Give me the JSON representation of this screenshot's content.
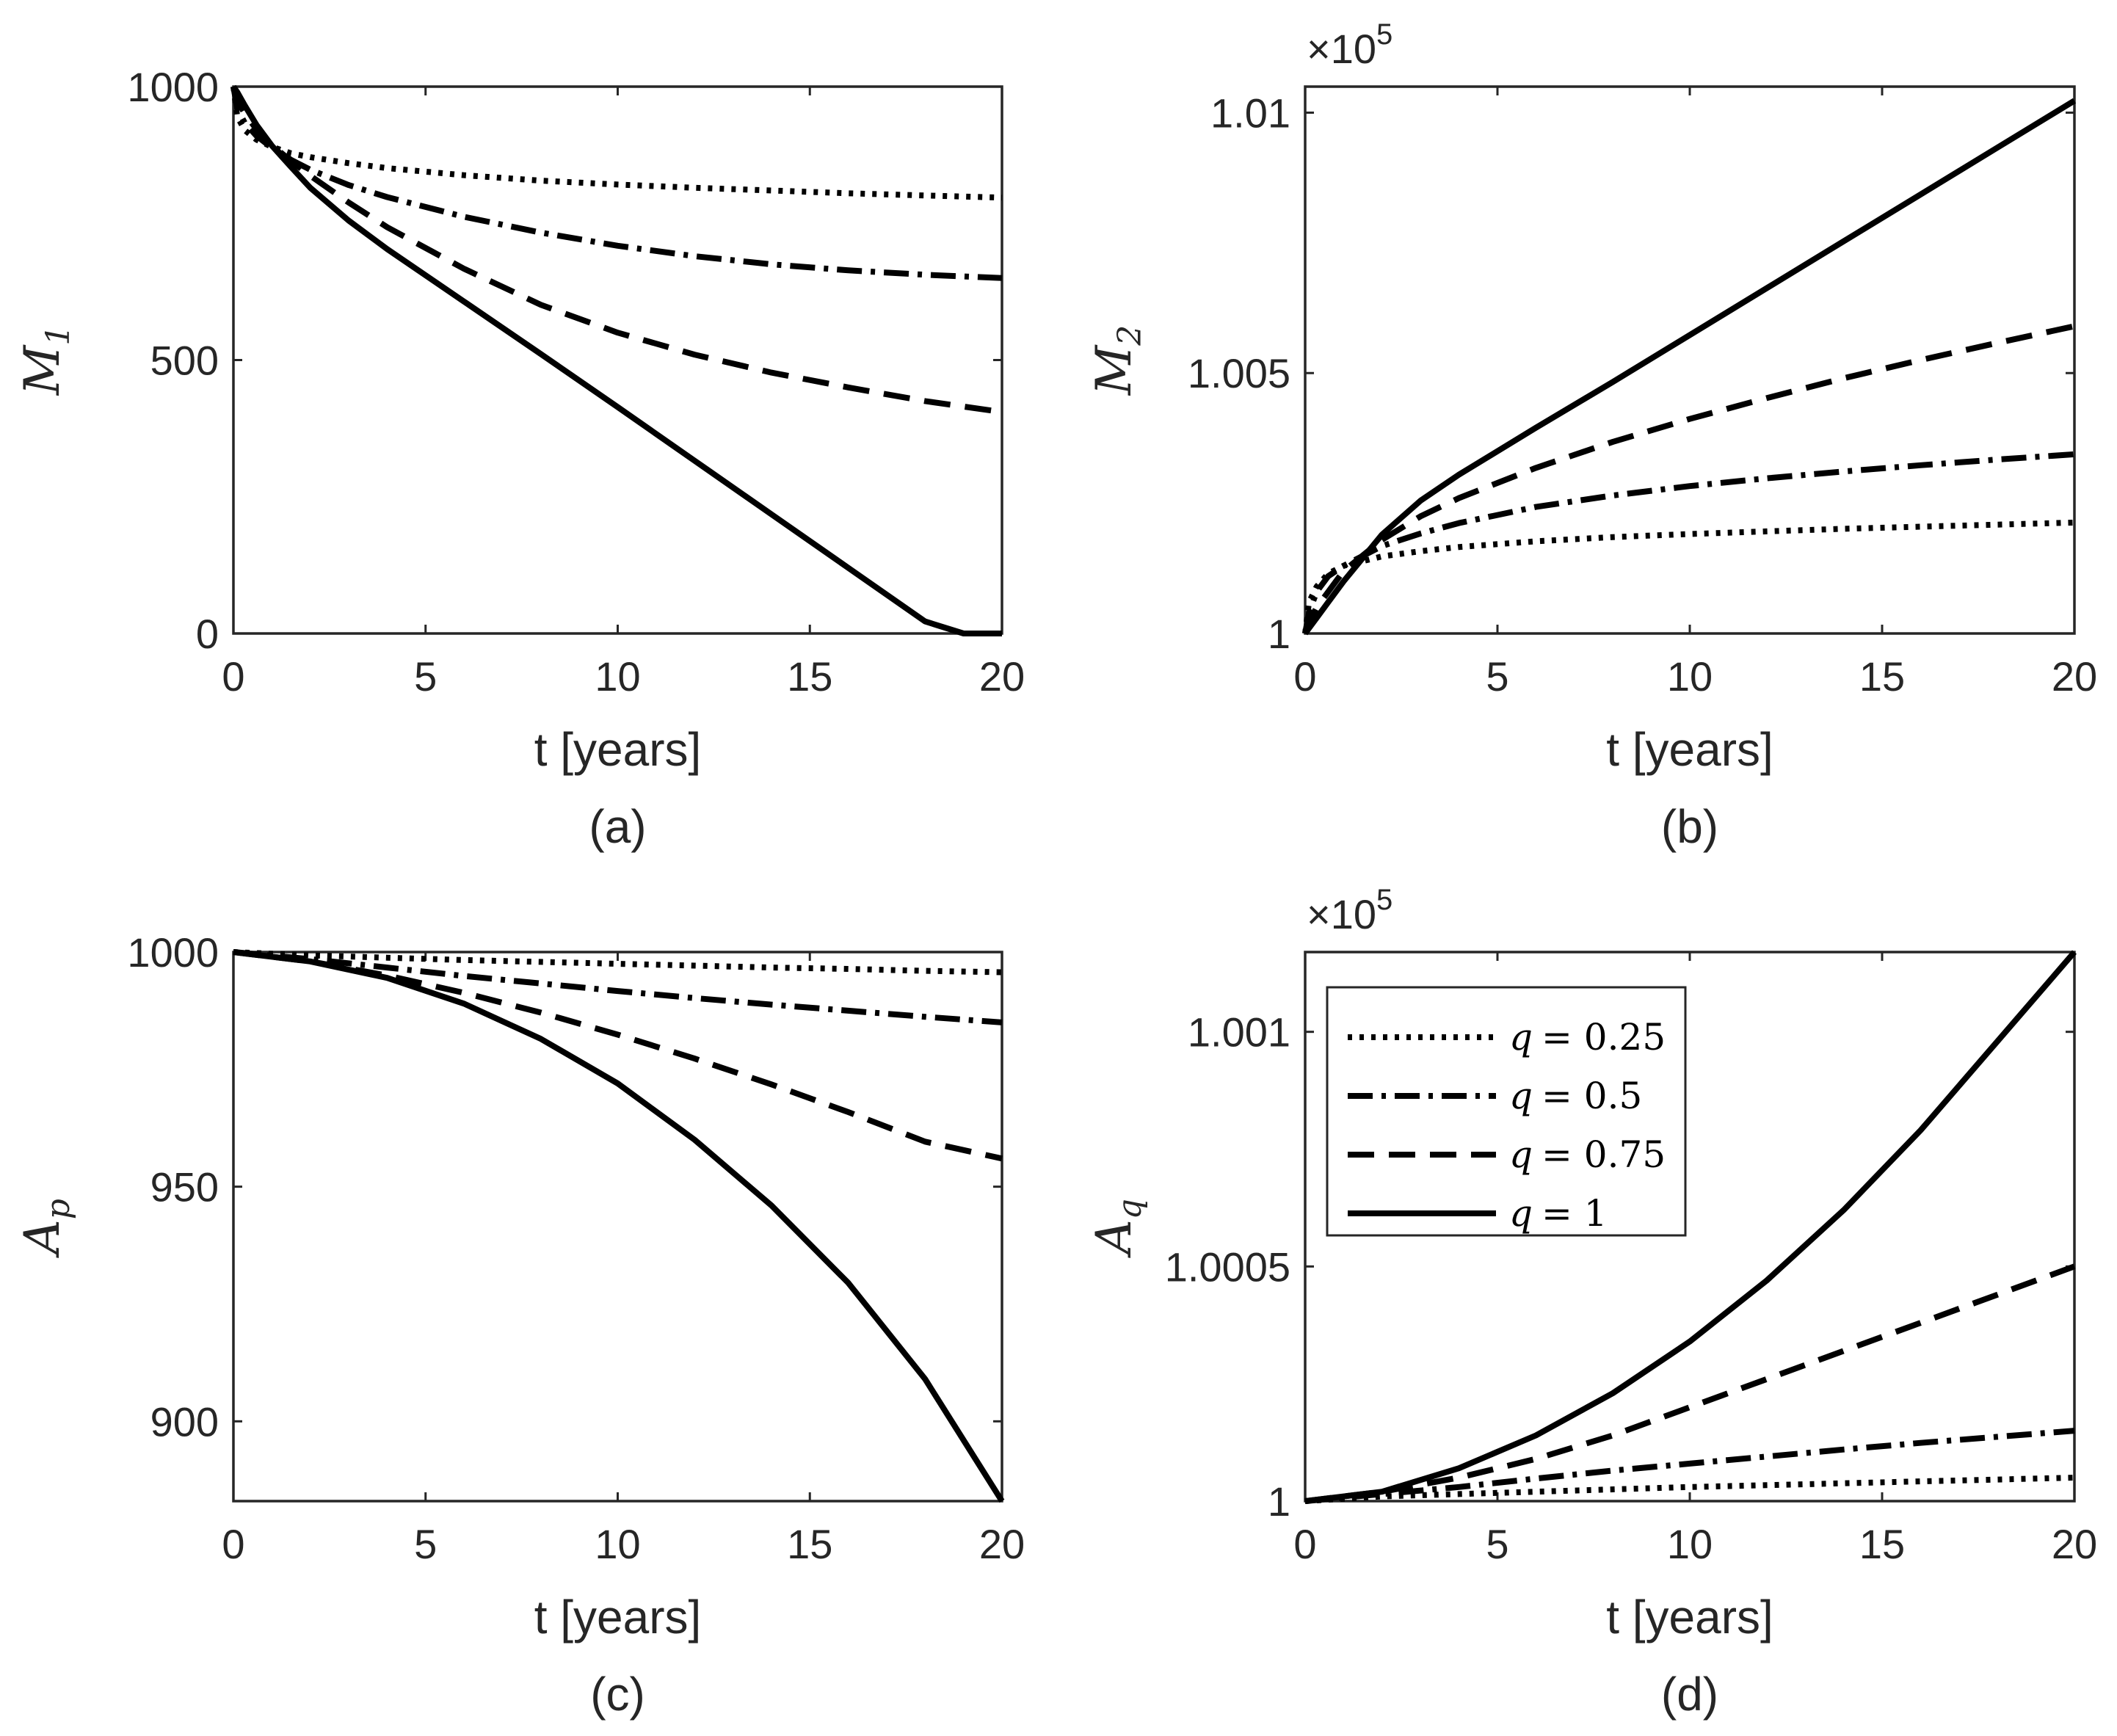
{
  "figure": {
    "title": "Four-panel figure: M1, M2, Ap, Aq versus t for q = 0.25, 0.5, 0.75, 1"
  },
  "styles": {
    "line_color": "#000000",
    "axis_color": "#262626",
    "background": "#ffffff"
  },
  "chart_data": [
    {
      "id": "a",
      "type": "line",
      "caption": "(a)",
      "xlabel": "t [years]",
      "ylabel_main": "M",
      "ylabel_sub": "1",
      "scale_base": "",
      "scale_exponent": "",
      "xlim": [
        0,
        20
      ],
      "ylim": [
        0,
        1000
      ],
      "xticks": [
        0,
        5,
        10,
        15,
        20
      ],
      "xtick_labels": [
        "0",
        "5",
        "10",
        "15",
        "20"
      ],
      "yticks": [
        0,
        500,
        1000
      ],
      "ytick_labels": [
        "0",
        "500",
        "1000"
      ],
      "series": [
        {
          "name": "q = 0.25",
          "dash": "dotted",
          "x": [
            0,
            0.1,
            0.3,
            0.6,
            1,
            1.5,
            2,
            3,
            4,
            6,
            8,
            10,
            12,
            14,
            16,
            18,
            20
          ],
          "y": [
            1000,
            945,
            920,
            903,
            890,
            878,
            871,
            860,
            851,
            838,
            828,
            821,
            815,
            810,
            805,
            801,
            797
          ]
        },
        {
          "name": "q = 0.5",
          "dash": "dashdot",
          "x": [
            0,
            0.1,
            0.3,
            0.6,
            1,
            1.5,
            2,
            3,
            4,
            6,
            8,
            10,
            12,
            14,
            16,
            18,
            20
          ],
          "y": [
            1000,
            960,
            933,
            910,
            888,
            866,
            848,
            820,
            798,
            762,
            733,
            709,
            690,
            675,
            664,
            656,
            650
          ]
        },
        {
          "name": "q = 0.75",
          "dash": "dashed",
          "x": [
            0,
            0.1,
            0.3,
            0.6,
            1,
            1.5,
            2,
            3,
            4,
            6,
            8,
            10,
            12,
            14,
            16,
            18,
            20
          ],
          "y": [
            1000,
            975,
            950,
            922,
            893,
            864,
            837,
            788,
            743,
            667,
            601,
            550,
            510,
            477,
            450,
            425,
            405
          ]
        },
        {
          "name": "q = 1",
          "dash": "solid",
          "x": [
            0,
            0.1,
            0.3,
            0.6,
            1,
            1.5,
            2,
            3,
            4,
            6,
            8,
            10,
            12,
            14,
            16,
            18,
            19,
            19.5,
            20
          ],
          "y": [
            1000,
            990,
            965,
            930,
            892,
            853,
            815,
            755,
            703,
            607,
            511,
            414,
            316,
            218,
            120,
            22,
            0,
            0,
            0
          ]
        }
      ]
    },
    {
      "id": "b",
      "type": "line",
      "caption": "(b)",
      "xlabel": "t [years]",
      "ylabel_main": "M",
      "ylabel_sub": "2",
      "scale_base": "×10",
      "scale_exponent": "5",
      "xlim": [
        0,
        20
      ],
      "ylim": [
        1,
        1.0105
      ],
      "xticks": [
        0,
        5,
        10,
        15,
        20
      ],
      "xtick_labels": [
        "0",
        "5",
        "10",
        "15",
        "20"
      ],
      "yticks": [
        1,
        1.005,
        1.01
      ],
      "ytick_labels": [
        "1",
        "1.005",
        "1.01"
      ],
      "series": [
        {
          "name": "q = 0.25",
          "dash": "dotted",
          "x": [
            0,
            0.1,
            0.3,
            0.6,
            1,
            2,
            3,
            4,
            6,
            8,
            10,
            12,
            14,
            16,
            18,
            20
          ],
          "y": [
            1.0,
            1.0006,
            1.0009,
            1.00115,
            1.0013,
            1.00148,
            1.00158,
            1.00166,
            1.00177,
            1.00185,
            1.00191,
            1.00196,
            1.00201,
            1.00205,
            1.00209,
            1.00213
          ]
        },
        {
          "name": "q = 0.5",
          "dash": "dashdot",
          "x": [
            0,
            0.1,
            0.3,
            0.6,
            1,
            2,
            3,
            4,
            6,
            8,
            10,
            12,
            14,
            16,
            18,
            20
          ],
          "y": [
            1.0,
            1.0004,
            1.0008,
            1.0011,
            1.0013,
            1.00168,
            1.00192,
            1.00212,
            1.00243,
            1.00265,
            1.00283,
            1.00298,
            1.00311,
            1.00323,
            1.00334,
            1.00344
          ]
        },
        {
          "name": "q = 0.75",
          "dash": "dashed",
          "x": [
            0,
            0.1,
            0.3,
            0.6,
            1,
            2,
            3,
            4,
            6,
            8,
            10,
            12,
            14,
            16,
            18,
            20
          ],
          "y": [
            1.0,
            1.0002,
            1.0005,
            1.0008,
            1.0012,
            1.0018,
            1.00225,
            1.0026,
            1.00318,
            1.00368,
            1.00412,
            1.00452,
            1.0049,
            1.00525,
            1.00558,
            1.0059
          ]
        },
        {
          "name": "q = 1",
          "dash": "solid",
          "x": [
            0,
            0.1,
            0.3,
            0.6,
            1,
            2,
            3,
            4,
            6,
            8,
            10,
            12,
            14,
            16,
            18,
            20
          ],
          "y": [
            1.0,
            1.0001,
            1.0003,
            1.0006,
            1.001,
            1.0019,
            1.00255,
            1.00305,
            1.00395,
            1.00483,
            1.00573,
            1.00663,
            1.00753,
            1.00843,
            1.00933,
            1.01023
          ]
        }
      ]
    },
    {
      "id": "c",
      "type": "line",
      "caption": "(c)",
      "xlabel": "t [years]",
      "ylabel_main": "A",
      "ylabel_sub": "p",
      "scale_base": "",
      "scale_exponent": "",
      "xlim": [
        0,
        20
      ],
      "ylim": [
        883,
        1000
      ],
      "xticks": [
        0,
        5,
        10,
        15,
        20
      ],
      "xtick_labels": [
        "0",
        "5",
        "10",
        "15",
        "20"
      ],
      "yticks": [
        900,
        950,
        1000
      ],
      "ytick_labels": [
        "900",
        "950",
        "1000"
      ],
      "series": [
        {
          "name": "q = 0.25",
          "dash": "dotted",
          "x": [
            0,
            2,
            4,
            6,
            8,
            10,
            12,
            14,
            16,
            18,
            20
          ],
          "y": [
            1000,
            999.3,
            998.8,
            998.3,
            997.9,
            997.5,
            997.1,
            996.7,
            996.4,
            996.0,
            995.7
          ]
        },
        {
          "name": "q = 0.5",
          "dash": "dashdot",
          "x": [
            0,
            2,
            4,
            6,
            8,
            10,
            12,
            14,
            16,
            18,
            20
          ],
          "y": [
            1000,
            998.5,
            996.7,
            994.9,
            993.3,
            991.7,
            990.2,
            988.8,
            987.5,
            986.2,
            985.0
          ]
        },
        {
          "name": "q = 0.75",
          "dash": "dashed",
          "x": [
            0,
            2,
            4,
            6,
            8,
            10,
            12,
            14,
            16,
            18,
            20
          ],
          "y": [
            1000,
            998.0,
            995.0,
            991.3,
            987.1,
            982.4,
            977.3,
            971.8,
            965.9,
            959.6,
            956.0
          ]
        },
        {
          "name": "q = 1",
          "dash": "solid",
          "x": [
            0,
            2,
            4,
            6,
            8,
            10,
            12,
            14,
            16,
            18,
            20
          ],
          "y": [
            1000,
            998.0,
            994.5,
            989.0,
            981.5,
            972.0,
            960.0,
            946.0,
            929.5,
            909.0,
            883.0
          ]
        }
      ]
    },
    {
      "id": "d",
      "type": "line",
      "caption": "(d)",
      "xlabel": "t [years]",
      "ylabel_main": "A",
      "ylabel_sub": "q",
      "scale_base": "×10",
      "scale_exponent": "5",
      "xlim": [
        0,
        20
      ],
      "ylim": [
        1,
        1.00117
      ],
      "xticks": [
        0,
        5,
        10,
        15,
        20
      ],
      "xtick_labels": [
        "0",
        "5",
        "10",
        "15",
        "20"
      ],
      "yticks": [
        1,
        1.0005,
        1.001
      ],
      "ytick_labels": [
        "1",
        "1.0005",
        "1.001"
      ],
      "legend": {
        "location": "top-left",
        "entries": [
          {
            "label": "q = 0.25",
            "var": "q",
            "value": "= 0.25",
            "dash": "dotted"
          },
          {
            "label": "q = 0.5",
            "var": "q",
            "value": "= 0.5",
            "dash": "dashdot"
          },
          {
            "label": "q = 0.75",
            "var": "q",
            "value": "= 0.75",
            "dash": "dashed"
          },
          {
            "label": "q = 1",
            "var": "q",
            "value": "= 1",
            "dash": "solid"
          }
        ]
      },
      "series": [
        {
          "name": "q = 0.25",
          "dash": "dotted",
          "x": [
            0,
            2,
            4,
            6,
            8,
            10,
            12,
            14,
            16,
            18,
            20
          ],
          "y": [
            1.0,
            1.00001,
            1.000015,
            1.00002,
            1.000025,
            1.00003,
            1.000034,
            1.000038,
            1.000042,
            1.000046,
            1.00005
          ]
        },
        {
          "name": "q = 0.5",
          "dash": "dashdot",
          "x": [
            0,
            2,
            4,
            6,
            8,
            10,
            12,
            14,
            16,
            18,
            20
          ],
          "y": [
            1.0,
            1.000015,
            1.00003,
            1.000048,
            1.000065,
            1.00008,
            1.000095,
            1.00011,
            1.000124,
            1.000137,
            1.00015
          ]
        },
        {
          "name": "q = 0.75",
          "dash": "dashed",
          "x": [
            0,
            2,
            4,
            6,
            8,
            10,
            12,
            14,
            16,
            18,
            20
          ],
          "y": [
            1.0,
            1.00002,
            1.00005,
            1.00009,
            1.00014,
            1.0002,
            1.00026,
            1.00032,
            1.00038,
            1.00044,
            1.0005
          ]
        },
        {
          "name": "q = 1",
          "dash": "solid",
          "x": [
            0,
            2,
            4,
            6,
            8,
            10,
            12,
            14,
            16,
            18,
            20
          ],
          "y": [
            1.0,
            1.00002,
            1.00007,
            1.00014,
            1.00023,
            1.00034,
            1.00047,
            1.00062,
            1.00079,
            1.00098,
            1.00117
          ]
        }
      ]
    }
  ]
}
